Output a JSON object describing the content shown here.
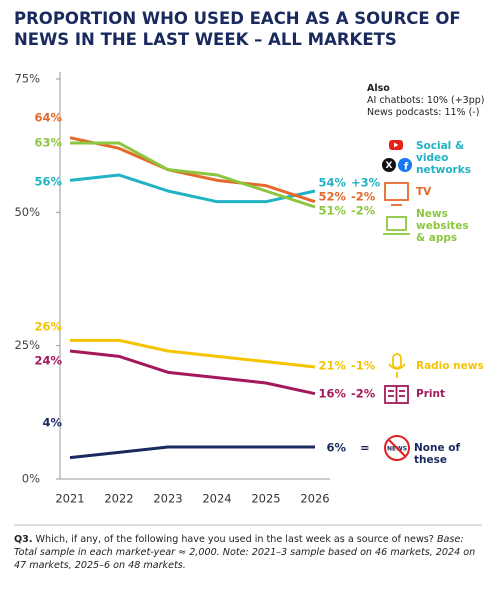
{
  "chart_data": {
    "type": "line",
    "title": "PROPORTION WHO USED EACH AS A SOURCE OF NEWS IN THE LAST WEEK – ALL MARKETS",
    "categories": [
      "2021",
      "2022",
      "2023",
      "2024",
      "2025",
      "2026"
    ],
    "ylim": [
      0,
      75
    ],
    "yticks": [
      {
        "value": 0,
        "label": "0%"
      },
      {
        "value": 25,
        "label": "25%"
      },
      {
        "value": 50,
        "label": "50%"
      },
      {
        "value": 75,
        "label": "75%"
      }
    ],
    "grid": false,
    "series": [
      {
        "name": "Social & video networks",
        "color": "#1fb3c4",
        "values": [
          56,
          57,
          54,
          52,
          52,
          54
        ],
        "value_labels": [
          "56%",
          null,
          null,
          null,
          null,
          "54%"
        ],
        "change": "+3%"
      },
      {
        "name": "TV",
        "color": "#e5692a",
        "values": [
          64,
          62,
          58,
          56,
          55,
          52
        ],
        "value_labels": [
          "64%",
          null,
          null,
          null,
          null,
          "52%"
        ],
        "change": "-2%"
      },
      {
        "name": "News websites & apps",
        "color": "#8cc63f",
        "values": [
          63,
          63,
          58,
          57,
          54,
          51
        ],
        "value_labels": [
          "63%",
          null,
          null,
          null,
          null,
          "51%"
        ],
        "change": "-2%"
      },
      {
        "name": "Radio news",
        "color": "#f5c400",
        "values": [
          26,
          26,
          24,
          23,
          22,
          21
        ],
        "value_labels": [
          "26%",
          null,
          null,
          null,
          null,
          "21%"
        ],
        "change": "-1%"
      },
      {
        "name": "Print",
        "color": "#a3195b",
        "values": [
          24,
          23,
          20,
          19,
          18,
          16
        ],
        "value_labels": [
          "24%",
          null,
          null,
          null,
          null,
          "16%"
        ],
        "change": "-2%"
      },
      {
        "name": "None of these",
        "color": "#1b2a5e",
        "values": [
          4,
          5,
          6,
          6,
          6,
          6
        ],
        "value_labels": [
          "4%",
          null,
          null,
          null,
          null,
          "6%"
        ],
        "change": "="
      }
    ],
    "also": {
      "heading": "Also",
      "lines": [
        "AI chatbots: 10% (+3pp)",
        "News podcasts: 11% (-)"
      ]
    },
    "footnote": {
      "label": "Q3.",
      "question": "Which, if any, of the following have you used in the last week as a source of news?",
      "note": "Base: Total sample in each market-year ≈ 2,000. Note: 2021–3 sample based on 46 markets, 2024 on 47 markets, 2025–6 on 48 markets."
    }
  }
}
